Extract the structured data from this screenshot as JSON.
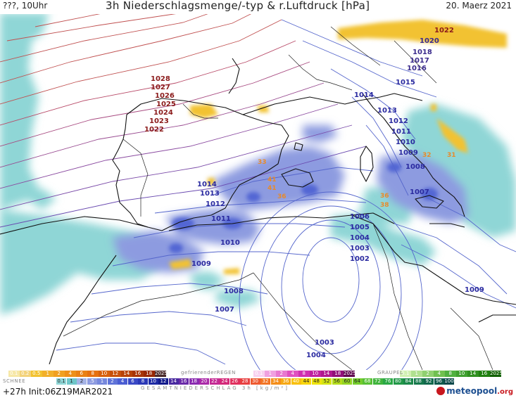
{
  "header": {
    "left": "???, 10Uhr",
    "title": "3h Niederschlagsmenge/-typ & r.Luftdruck [hPa]",
    "date": "20. Maerz 2021"
  },
  "isobar_labels": [
    {
      "text": "1028",
      "color": "#8b1a1a"
    },
    {
      "text": "1027",
      "color": "#8b1a1a"
    },
    {
      "text": "1026",
      "color": "#8b1a1a"
    },
    {
      "text": "1025",
      "color": "#8b1a1a"
    },
    {
      "text": "1024",
      "color": "#8b1a1a"
    },
    {
      "text": "1023",
      "color": "#8b1a1a"
    },
    {
      "text": "1022",
      "color": "#8b1a1a"
    },
    {
      "text": "1022",
      "color": "#8b1a1a"
    },
    {
      "text": "1020",
      "color": "#3a2a8c"
    },
    {
      "text": "1018",
      "color": "#3a2a8c"
    },
    {
      "text": "1017",
      "color": "#3a2a8c"
    },
    {
      "text": "1016",
      "color": "#3a2a8c"
    },
    {
      "text": "1015",
      "color": "#2a2aa0"
    },
    {
      "text": "1014",
      "color": "#2a2aa0"
    },
    {
      "text": "1013",
      "color": "#2a2aa0"
    },
    {
      "text": "1012",
      "color": "#2a2aa0"
    },
    {
      "text": "1011",
      "color": "#2a2aa0"
    },
    {
      "text": "1010",
      "color": "#2a2aa0"
    },
    {
      "text": "1009",
      "color": "#2a2aa0"
    },
    {
      "text": "1008",
      "color": "#2a2aa0"
    },
    {
      "text": "1007",
      "color": "#2a2aa0"
    },
    {
      "text": "1014",
      "color": "#2a2aa0"
    },
    {
      "text": "1013",
      "color": "#2a2aa0"
    },
    {
      "text": "1012",
      "color": "#2a2aa0"
    },
    {
      "text": "1011",
      "color": "#2a2aa0"
    },
    {
      "text": "1010",
      "color": "#2a2aa0"
    },
    {
      "text": "1009",
      "color": "#2a2aa0"
    },
    {
      "text": "1008",
      "color": "#2a2aa0"
    },
    {
      "text": "1007",
      "color": "#2a2aa0"
    },
    {
      "text": "1006",
      "color": "#2a2aa0"
    },
    {
      "text": "1005",
      "color": "#2a2aa0"
    },
    {
      "text": "1004",
      "color": "#2a2aa0"
    },
    {
      "text": "1003",
      "color": "#2a2aa0"
    },
    {
      "text": "1002",
      "color": "#2a2aa0"
    },
    {
      "text": "1003",
      "color": "#2a2aa0"
    },
    {
      "text": "1004",
      "color": "#2a2aa0"
    },
    {
      "text": "1009",
      "color": "#2a2aa0"
    }
  ],
  "temp_labels": [
    "33",
    "41",
    "41",
    "36",
    "36",
    "38",
    "32",
    "31"
  ],
  "legend": {
    "snow_label": "SCHNEE",
    "snow_scale": [
      "0.1",
      "0.2",
      "0.5",
      "1",
      "2",
      "4",
      "6",
      "8",
      "10",
      "12",
      "14",
      "16",
      "18",
      "2025+"
    ],
    "frz_label": "gefrierenderREGEN",
    "frz_scale": [
      "0.1",
      "1",
      "2",
      "4",
      "8",
      "10",
      "14",
      "18",
      "2025+"
    ],
    "graupel_label": "GRAUPEL",
    "graupel_scale": [
      "0.1",
      "1",
      "2",
      "4",
      "8",
      "10",
      "14",
      "16",
      "2025+"
    ],
    "total_label": "GESAMTNIEDERSCHLAG 3h [kg/m²]",
    "total_scale": [
      "0.1",
      "1",
      "2",
      ".5",
      "1",
      "2",
      "4",
      "6",
      "8",
      "10",
      "12",
      "14",
      "16",
      "18",
      "20",
      "22",
      "24",
      "26",
      "28",
      "30",
      "32",
      "34",
      "36",
      "40",
      "44",
      "48",
      "52",
      "56",
      "60",
      "64",
      "68",
      "72",
      "76",
      "80",
      "84",
      "88",
      "92",
      "96",
      "100"
    ],
    "total_colors": [
      "#8fd6d6",
      "#6fc6c8",
      "#a6b4e6",
      "#8d9be0",
      "#7688dc",
      "#5f73d8",
      "#4a5dd2",
      "#3949c6",
      "#2a38b6",
      "#1d2aa4",
      "#121b8c",
      "#4a2aa0",
      "#6a2aa8",
      "#8a2ab0",
      "#aa2aa8",
      "#c42a94",
      "#d42a7a",
      "#e0305e",
      "#e84040",
      "#ee5a30",
      "#f27424",
      "#f48e1a",
      "#f6a814",
      "#f8c010",
      "#f8d60e",
      "#eee40e",
      "#d4e414",
      "#b4dc1c",
      "#94d424",
      "#74cc2c",
      "#58c034",
      "#40b43c",
      "#2aa844",
      "#229848",
      "#1c884a",
      "#16784c",
      "#12684c",
      "#0e584c",
      "#0a484a"
    ]
  },
  "init_label": "+27h Init:06Z19MAR2021",
  "brand": "meteopool",
  "brand_tld": ".org"
}
